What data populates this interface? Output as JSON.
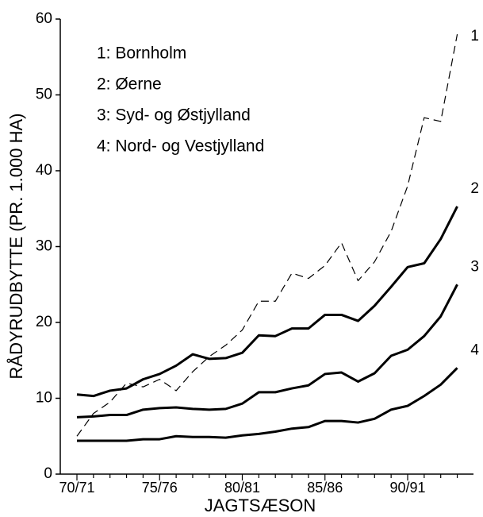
{
  "chart_data": {
    "type": "line",
    "xlabel": "JAGTSÆSON",
    "ylabel": "RÅDYRUDBYTTE  (PR. 1.000 HA)",
    "categories": [
      "70/71",
      null,
      null,
      null,
      null,
      "75/76",
      null,
      null,
      null,
      null,
      "80/81",
      null,
      null,
      null,
      null,
      "85/86",
      null,
      null,
      null,
      null,
      "90/91",
      null,
      null,
      null
    ],
    "ylim": [
      0,
      60
    ],
    "yticks": [
      0,
      10,
      20,
      30,
      40,
      50,
      60
    ],
    "grid": false,
    "legend": "upper left",
    "series": [
      {
        "name": "1: Bornholm",
        "end_label": "1",
        "color": "#000000",
        "dashed": true,
        "values": [
          5,
          8,
          9.5,
          12,
          11.5,
          12.5,
          11,
          13.5,
          15.5,
          17,
          19,
          22.8,
          22.8,
          26.5,
          25.8,
          27.5,
          30.5,
          25.5,
          28,
          32,
          38,
          47,
          46.5,
          58
        ]
      },
      {
        "name": "2: Øerne",
        "end_label": "2",
        "color": "#000000",
        "dashed": false,
        "values": [
          10.5,
          10.3,
          11,
          11.3,
          12.5,
          13.2,
          14.3,
          15.8,
          15.2,
          15.3,
          16,
          18.3,
          18.2,
          19.2,
          19.2,
          21,
          21,
          20.2,
          22.2,
          24.7,
          27.3,
          27.8,
          31,
          35.3
        ]
      },
      {
        "name": "3: Syd- og Østjylland",
        "end_label": "3",
        "color": "#000000",
        "dashed": false,
        "values": [
          7.5,
          7.6,
          7.8,
          7.8,
          8.5,
          8.7,
          8.8,
          8.6,
          8.5,
          8.6,
          9.3,
          10.8,
          10.8,
          11.3,
          11.7,
          13.2,
          13.4,
          12.2,
          13.3,
          15.6,
          16.4,
          18.2,
          20.8,
          25
        ]
      },
      {
        "name": "4: Nord- og Vestjylland",
        "end_label": "4",
        "color": "#000000",
        "dashed": false,
        "values": [
          4.4,
          4.4,
          4.4,
          4.4,
          4.6,
          4.6,
          5,
          4.9,
          4.9,
          4.8,
          5.1,
          5.3,
          5.6,
          6,
          6.2,
          7,
          7,
          6.8,
          7.3,
          8.5,
          9,
          10.3,
          11.8,
          14
        ]
      }
    ]
  }
}
